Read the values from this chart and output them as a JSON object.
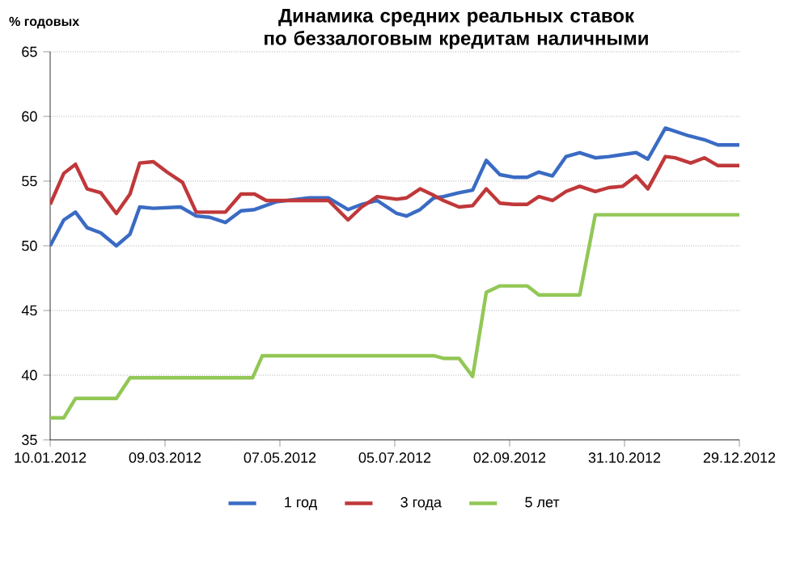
{
  "chart_data": {
    "type": "line",
    "title": "Динамика средних реальных ставок по беззалоговым кредитам наличными",
    "ylabel": "% годовых",
    "xlim": [
      "2012-01-10",
      "2012-12-29"
    ],
    "xticks": [
      {
        "value": "2012-01-10",
        "label": "10.01.2012"
      },
      {
        "value": "2012-03-09",
        "label": "09.03.2012"
      },
      {
        "value": "2012-05-07",
        "label": "07.05.2012"
      },
      {
        "value": "2012-07-05",
        "label": "05.07.2012"
      },
      {
        "value": "2012-09-02",
        "label": "02.09.2012"
      },
      {
        "value": "2012-10-31",
        "label": "31.10.2012"
      },
      {
        "value": "2012-12-29",
        "label": "29.12.2012"
      }
    ],
    "ylim": [
      35,
      65
    ],
    "yticks": [
      35,
      40,
      45,
      50,
      55,
      60,
      65
    ],
    "grid": "y",
    "legend": "bottom",
    "marker": "none",
    "line_style": "solid",
    "series": [
      {
        "name": "1 год",
        "color": "#3a6bc4",
        "x": [
          "2012-01-10",
          "2012-01-17",
          "2012-01-23",
          "2012-01-29",
          "2012-02-05",
          "2012-02-13",
          "2012-02-20",
          "2012-02-25",
          "2012-03-03",
          "2012-03-17",
          "2012-03-25",
          "2012-04-01",
          "2012-04-09",
          "2012-04-17",
          "2012-04-24",
          "2012-05-05",
          "2012-05-16",
          "2012-05-22",
          "2012-06-01",
          "2012-06-11",
          "2012-06-18",
          "2012-06-26",
          "2012-07-06",
          "2012-07-11",
          "2012-07-18",
          "2012-07-25",
          "2012-07-30",
          "2012-08-07",
          "2012-08-14",
          "2012-08-21",
          "2012-08-28",
          "2012-09-04",
          "2012-09-11",
          "2012-09-17",
          "2012-09-24",
          "2012-10-01",
          "2012-10-08",
          "2012-10-16",
          "2012-10-23",
          "2012-11-06",
          "2012-11-12",
          "2012-11-21",
          "2012-12-03",
          "2012-12-11",
          "2012-12-18",
          "2012-12-29"
        ],
        "values": [
          50.0,
          52.0,
          52.6,
          51.4,
          51.0,
          50.0,
          50.9,
          53.0,
          52.9,
          53.0,
          52.3,
          52.2,
          51.8,
          52.7,
          52.8,
          53.4,
          53.6,
          53.7,
          53.7,
          52.8,
          53.2,
          53.5,
          52.5,
          52.3,
          52.8,
          53.7,
          53.8,
          54.1,
          54.3,
          56.6,
          55.5,
          55.3,
          55.3,
          55.7,
          55.4,
          56.9,
          57.2,
          56.8,
          56.9,
          57.2,
          56.7,
          59.1,
          58.5,
          58.2,
          57.8,
          57.8
        ]
      },
      {
        "name": "3 года",
        "color": "#c0383a",
        "x": [
          "2012-01-10",
          "2012-01-17",
          "2012-01-23",
          "2012-01-29",
          "2012-02-05",
          "2012-02-13",
          "2012-02-20",
          "2012-02-25",
          "2012-03-03",
          "2012-03-10",
          "2012-03-18",
          "2012-03-25",
          "2012-04-09",
          "2012-04-17",
          "2012-04-24",
          "2012-04-30",
          "2012-05-16",
          "2012-06-01",
          "2012-06-11",
          "2012-06-18",
          "2012-06-26",
          "2012-07-06",
          "2012-07-11",
          "2012-07-18",
          "2012-07-25",
          "2012-07-30",
          "2012-08-07",
          "2012-08-14",
          "2012-08-21",
          "2012-08-28",
          "2012-09-04",
          "2012-09-11",
          "2012-09-17",
          "2012-09-24",
          "2012-10-01",
          "2012-10-08",
          "2012-10-16",
          "2012-10-23",
          "2012-10-30",
          "2012-11-06",
          "2012-11-12",
          "2012-11-21",
          "2012-11-26",
          "2012-12-04",
          "2012-12-11",
          "2012-12-18",
          "2012-12-29"
        ],
        "values": [
          53.2,
          55.6,
          56.3,
          54.4,
          54.1,
          52.5,
          54.0,
          56.4,
          56.5,
          55.7,
          54.9,
          52.6,
          52.6,
          54.0,
          54.0,
          53.5,
          53.5,
          53.5,
          52.0,
          53.0,
          53.8,
          53.6,
          53.7,
          54.4,
          53.9,
          53.5,
          53.0,
          53.1,
          54.4,
          53.3,
          53.2,
          53.2,
          53.8,
          53.5,
          54.2,
          54.6,
          54.2,
          54.5,
          54.6,
          55.4,
          54.4,
          56.9,
          56.8,
          56.4,
          56.8,
          56.2,
          56.2
        ]
      },
      {
        "name": "5 лет",
        "color": "#92c756",
        "x": [
          "2012-01-10",
          "2012-01-17",
          "2012-01-23",
          "2012-02-13",
          "2012-02-20",
          "2012-04-23",
          "2012-04-28",
          "2012-07-25",
          "2012-07-30",
          "2012-08-07",
          "2012-08-14",
          "2012-08-21",
          "2012-08-28",
          "2012-09-11",
          "2012-09-17",
          "2012-10-08",
          "2012-10-16",
          "2012-12-29"
        ],
        "values": [
          36.7,
          36.7,
          38.2,
          38.2,
          39.8,
          39.8,
          41.5,
          41.5,
          41.3,
          41.3,
          39.9,
          46.4,
          46.9,
          46.9,
          46.2,
          46.2,
          52.4,
          52.4
        ]
      }
    ]
  }
}
